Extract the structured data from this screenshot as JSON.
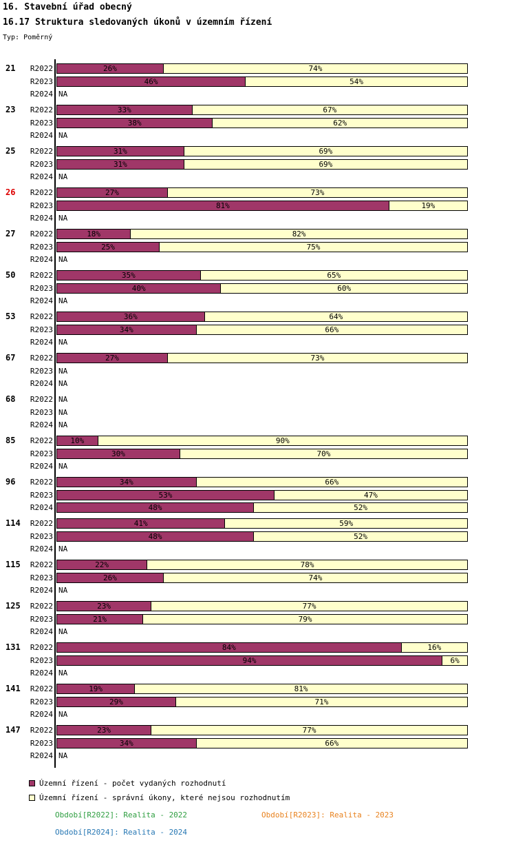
{
  "title": "16. Stavební úřad obecný",
  "subtitle": "16.17 Struktura sledovaných úkonů v územním řízení",
  "type_label": "Typ: Poměrný",
  "na_label": "NA",
  "colors": {
    "decisions": "#A03768",
    "non_decisions": "#FFFFCC",
    "bar_border": "#000000",
    "highlight_group": "#DD0000",
    "period_2022": "#2E9E40",
    "period_2023": "#E8821E",
    "period_2024": "#2878B4"
  },
  "legend": {
    "items": [
      {
        "name": "decisions",
        "label": "Územní řízení - počet vydaných rozhodnutí",
        "color": "#A03768"
      },
      {
        "name": "non-decisions",
        "label": "Územní řízení - správní úkony, které nejsou rozhodnutím",
        "color": "#FFFFCC"
      }
    ]
  },
  "periods": [
    {
      "label": "Období[R2022]: Realita - 2022",
      "color": "#2E9E40"
    },
    {
      "label": "Období[R2023]: Realita - 2023",
      "color": "#E8821E"
    },
    {
      "label": "Období[R2024]: Realita - 2024",
      "color": "#2878B4"
    }
  ],
  "chart_data": {
    "type": "bar",
    "orientation": "horizontal",
    "stacked": true,
    "value_unit": "%",
    "xlim": [
      0,
      100
    ],
    "title": "16.17 Struktura sledovaných úkonů v územním řízení",
    "series_names": [
      "Územní řízení - počet vydaných rozhodnutí",
      "Územní řízení - správní úkony, které nejsou rozhodnutím"
    ],
    "row_periods": [
      "R2022",
      "R2023",
      "R2024"
    ],
    "groups": [
      {
        "id": "21",
        "highlighted": false,
        "rows": [
          {
            "period": "R2022",
            "na": false,
            "decisions": 26,
            "other": 74
          },
          {
            "period": "R2023",
            "na": false,
            "decisions": 46,
            "other": 54
          },
          {
            "period": "R2024",
            "na": true
          }
        ]
      },
      {
        "id": "23",
        "highlighted": false,
        "rows": [
          {
            "period": "R2022",
            "na": false,
            "decisions": 33,
            "other": 67
          },
          {
            "period": "R2023",
            "na": false,
            "decisions": 38,
            "other": 62
          },
          {
            "period": "R2024",
            "na": true
          }
        ]
      },
      {
        "id": "25",
        "highlighted": false,
        "rows": [
          {
            "period": "R2022",
            "na": false,
            "decisions": 31,
            "other": 69
          },
          {
            "period": "R2023",
            "na": false,
            "decisions": 31,
            "other": 69
          },
          {
            "period": "R2024",
            "na": true
          }
        ]
      },
      {
        "id": "26",
        "highlighted": true,
        "rows": [
          {
            "period": "R2022",
            "na": false,
            "decisions": 27,
            "other": 73
          },
          {
            "period": "R2023",
            "na": false,
            "decisions": 81,
            "other": 19
          },
          {
            "period": "R2024",
            "na": true
          }
        ]
      },
      {
        "id": "27",
        "highlighted": false,
        "rows": [
          {
            "period": "R2022",
            "na": false,
            "decisions": 18,
            "other": 82
          },
          {
            "period": "R2023",
            "na": false,
            "decisions": 25,
            "other": 75
          },
          {
            "period": "R2024",
            "na": true
          }
        ]
      },
      {
        "id": "50",
        "highlighted": false,
        "rows": [
          {
            "period": "R2022",
            "na": false,
            "decisions": 35,
            "other": 65
          },
          {
            "period": "R2023",
            "na": false,
            "decisions": 40,
            "other": 60
          },
          {
            "period": "R2024",
            "na": true
          }
        ]
      },
      {
        "id": "53",
        "highlighted": false,
        "rows": [
          {
            "period": "R2022",
            "na": false,
            "decisions": 36,
            "other": 64
          },
          {
            "period": "R2023",
            "na": false,
            "decisions": 34,
            "other": 66
          },
          {
            "period": "R2024",
            "na": true
          }
        ]
      },
      {
        "id": "67",
        "highlighted": false,
        "rows": [
          {
            "period": "R2022",
            "na": false,
            "decisions": 27,
            "other": 73
          },
          {
            "period": "R2023",
            "na": true
          },
          {
            "period": "R2024",
            "na": true
          }
        ]
      },
      {
        "id": "68",
        "highlighted": false,
        "rows": [
          {
            "period": "R2022",
            "na": true
          },
          {
            "period": "R2023",
            "na": true
          },
          {
            "period": "R2024",
            "na": true
          }
        ]
      },
      {
        "id": "85",
        "highlighted": false,
        "rows": [
          {
            "period": "R2022",
            "na": false,
            "decisions": 10,
            "other": 90
          },
          {
            "period": "R2023",
            "na": false,
            "decisions": 30,
            "other": 70
          },
          {
            "period": "R2024",
            "na": true
          }
        ]
      },
      {
        "id": "96",
        "highlighted": false,
        "rows": [
          {
            "period": "R2022",
            "na": false,
            "decisions": 34,
            "other": 66
          },
          {
            "period": "R2023",
            "na": false,
            "decisions": 53,
            "other": 47
          },
          {
            "period": "R2024",
            "na": false,
            "decisions": 48,
            "other": 52
          }
        ]
      },
      {
        "id": "114",
        "highlighted": false,
        "rows": [
          {
            "period": "R2022",
            "na": false,
            "decisions": 41,
            "other": 59
          },
          {
            "period": "R2023",
            "na": false,
            "decisions": 48,
            "other": 52
          },
          {
            "period": "R2024",
            "na": true
          }
        ]
      },
      {
        "id": "115",
        "highlighted": false,
        "rows": [
          {
            "period": "R2022",
            "na": false,
            "decisions": 22,
            "other": 78
          },
          {
            "period": "R2023",
            "na": false,
            "decisions": 26,
            "other": 74
          },
          {
            "period": "R2024",
            "na": true
          }
        ]
      },
      {
        "id": "125",
        "highlighted": false,
        "rows": [
          {
            "period": "R2022",
            "na": false,
            "decisions": 23,
            "other": 77
          },
          {
            "period": "R2023",
            "na": false,
            "decisions": 21,
            "other": 79
          },
          {
            "period": "R2024",
            "na": true
          }
        ]
      },
      {
        "id": "131",
        "highlighted": false,
        "rows": [
          {
            "period": "R2022",
            "na": false,
            "decisions": 84,
            "other": 16
          },
          {
            "period": "R2023",
            "na": false,
            "decisions": 94,
            "other": 6
          },
          {
            "period": "R2024",
            "na": true
          }
        ]
      },
      {
        "id": "141",
        "highlighted": false,
        "rows": [
          {
            "period": "R2022",
            "na": false,
            "decisions": 19,
            "other": 81
          },
          {
            "period": "R2023",
            "na": false,
            "decisions": 29,
            "other": 71
          },
          {
            "period": "R2024",
            "na": true
          }
        ]
      },
      {
        "id": "147",
        "highlighted": false,
        "rows": [
          {
            "period": "R2022",
            "na": false,
            "decisions": 23,
            "other": 77
          },
          {
            "period": "R2023",
            "na": false,
            "decisions": 34,
            "other": 66
          },
          {
            "period": "R2024",
            "na": true
          }
        ]
      }
    ]
  }
}
